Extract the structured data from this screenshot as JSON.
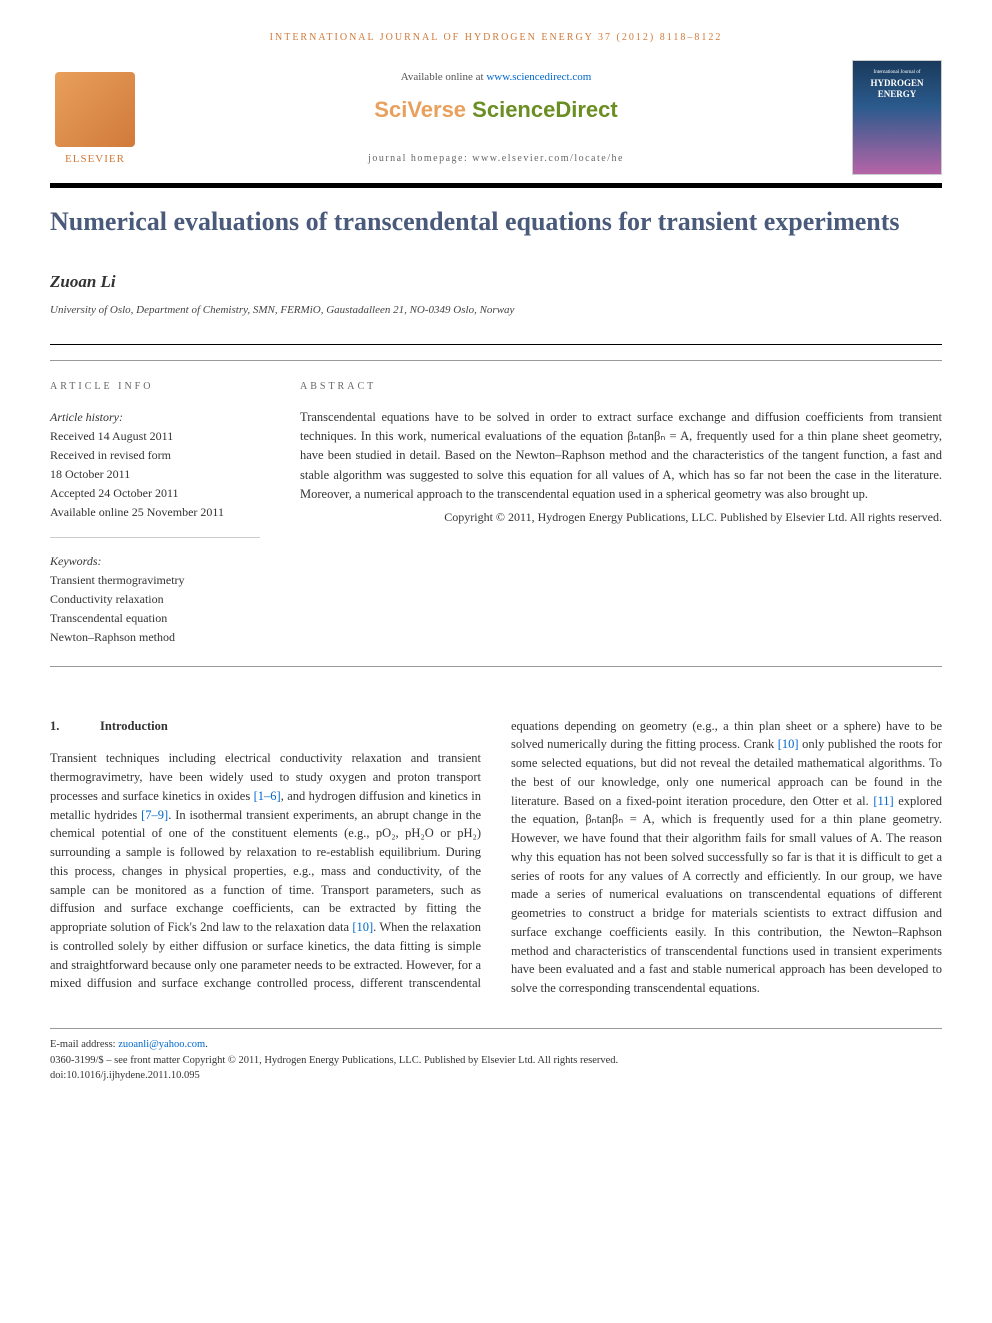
{
  "journal_reference": "INTERNATIONAL JOURNAL OF HYDROGEN ENERGY 37 (2012) 8118–8122",
  "header": {
    "available_text": "Available online at ",
    "available_link": "www.sciencedirect.com",
    "sciverse_prefix": "SciVerse ",
    "sciverse_main": "ScienceDirect",
    "homepage_label": "journal homepage: ",
    "homepage_url": "www.elsevier.com/locate/he",
    "elsevier_label": "ELSEVIER",
    "cover_small": "International Journal of",
    "cover_large1": "HYDROGEN",
    "cover_large2": "ENERGY"
  },
  "title": "Numerical evaluations of transcendental equations for transient experiments",
  "author": "Zuoan Li",
  "affiliation": "University of Oslo, Department of Chemistry, SMN, FERMiO, Gaustadalleen 21, NO-0349 Oslo, Norway",
  "info_heading": "ARTICLE INFO",
  "abstract_heading": "ABSTRACT",
  "history": {
    "label": "Article history:",
    "received": "Received 14 August 2011",
    "revised1": "Received in revised form",
    "revised2": "18 October 2011",
    "accepted": "Accepted 24 October 2011",
    "online": "Available online 25 November 2011"
  },
  "keywords": {
    "label": "Keywords:",
    "k1": "Transient thermogravimetry",
    "k2": "Conductivity relaxation",
    "k3": "Transcendental equation",
    "k4": "Newton–Raphson method"
  },
  "abstract": "Transcendental equations have to be solved in order to extract surface exchange and diffusion coefficients from transient techniques. In this work, numerical evaluations of the equation βₙtanβₙ = A, frequently used for a thin plane sheet geometry, have been studied in detail. Based on the Newton–Raphson method and the characteristics of the tangent function, a fast and stable algorithm was suggested to solve this equation for all values of A, which has so far not been the case in the literature. Moreover, a numerical approach to the transcendental equation used in a spherical geometry was also brought up.",
  "copyright": "Copyright © 2011, Hydrogen Energy Publications, LLC. Published by Elsevier Ltd. All rights reserved.",
  "section1": {
    "num": "1.",
    "title": "Introduction"
  },
  "body_p1a": "Transient techniques including electrical conductivity relaxation and transient thermogravimetry, have been widely used to study oxygen and proton transport processes and surface kinetics in oxides ",
  "body_ref1": "[1–6]",
  "body_p1b": ", and hydrogen diffusion and kinetics in metallic hydrides ",
  "body_ref2": "[7–9]",
  "body_p1c": ". In isothermal transient experiments, an abrupt change in the chemical potential of one of the constituent elements (e.g., pO₂, pH₂O or pH₂) surrounding a sample is followed by relaxation to re-establish equilibrium. During this process, changes in physical properties, e.g., mass and conductivity, of the sample can be monitored as a function of time. Transport parameters, such as diffusion and surface exchange coefficients, can be extracted by fitting the appropriate solution of Fick's 2nd law to the relaxation data ",
  "body_ref3": "[10]",
  "body_p1d": ". When the relaxation is controlled solely by either diffusion or surface kinetics, the data fitting is simple and straightforward because only one parameter needs to be extracted. However, for a mixed diffusion and surface exchange controlled process, different transcendental equations depending on geometry (e.g., a thin plan sheet or a sphere) have to be solved numerically during the fitting process. Crank ",
  "body_ref4": "[10]",
  "body_p1e": " only published the roots for some selected equations, but did not reveal the detailed mathematical algorithms. To the best of our knowledge, only one numerical approach can be found in the literature. Based on a fixed-point iteration procedure, den Otter et al. ",
  "body_ref5": "[11]",
  "body_p1f": " explored the equation, βₙtanβₙ = A, which is frequently used for a thin plane geometry. However, we have found that their algorithm fails for small values of A. The reason why this equation has not been solved successfully so far is that it is difficult to get a series of roots for any values of A correctly and efficiently. In our group, we have made a series of numerical evaluations on transcendental equations of different geometries to construct a bridge for materials scientists to extract diffusion and surface exchange coefficients easily. In this contribution, the Newton–Raphson method and characteristics of transcendental functions used in transient experiments have been evaluated and a fast and stable numerical approach has been developed to solve the corresponding transcendental equations.",
  "footer": {
    "email_label": "E-mail address: ",
    "email": "zuoanli@yahoo.com",
    "email_suffix": ".",
    "issn": "0360-3199/$ – see front matter Copyright © 2011, Hydrogen Energy Publications, LLC. Published by Elsevier Ltd. All rights reserved.",
    "doi": "doi:10.1016/j.ijhydene.2011.10.095"
  }
}
